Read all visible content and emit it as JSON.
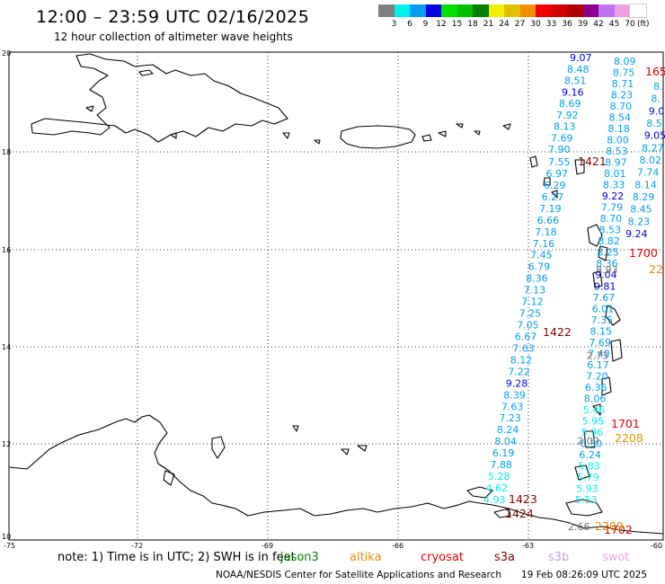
{
  "header": {
    "title": "12:00 – 23:59 UTC 02/16/2025",
    "subtitle": "12 hour collection of altimeter wave heights"
  },
  "legend": {
    "colors": [
      "#808080",
      "#00f0f0",
      "#00a0f0",
      "#0000e0",
      "#00e000",
      "#00c000",
      "#008000",
      "#f0f000",
      "#e0c000",
      "#f09000",
      "#f00000",
      "#d00000",
      "#b00000",
      "#900090",
      "#c070f0",
      "#f0a0e0",
      "#ffffff"
    ],
    "labels": [
      "3",
      "6",
      "9",
      "12",
      "15",
      "18",
      "21",
      "24",
      "27",
      "30",
      "33",
      "36",
      "39",
      "42",
      "45",
      "70"
    ],
    "unit": "(ft)"
  },
  "axes": {
    "lon_ticks": [
      "-75",
      "-72",
      "-69",
      "-66",
      "-63",
      "-60"
    ],
    "lat_ticks": [
      "20",
      "18",
      "16",
      "14",
      "12",
      "10"
    ]
  },
  "passes": [
    {
      "label": "1421",
      "color": "#800000"
    },
    {
      "label": "1422",
      "color": "#800000"
    },
    {
      "label": "1423",
      "color": "#800000"
    },
    {
      "label": "1424",
      "color": "#800000"
    },
    {
      "label": "1700",
      "color": "#e00000"
    },
    {
      "label": "1701",
      "color": "#e00000"
    },
    {
      "label": "1702",
      "color": "#e00000"
    },
    {
      "label": "165",
      "color": "#e00000"
    },
    {
      "label": "2208",
      "color": "#e09000"
    },
    {
      "label": "2209",
      "color": "#e09000"
    },
    {
      "label": "22",
      "color": "#e09000"
    }
  ],
  "tracks": {
    "inner": [
      "7.55",
      "6.97",
      "6.29",
      "6.27",
      "7.19",
      "6.66",
      "7.18",
      "7.16",
      "7.45",
      "6.79",
      "8.36",
      "7.13",
      "7.12",
      "7.25",
      "7.05",
      "6.67",
      "7.63",
      "8.12",
      "7.22",
      "9.28",
      "8.39",
      "7.63",
      "7.23",
      "8.24",
      "8.04",
      "6.19",
      "7.88",
      "5.28",
      "4.62",
      "4.93"
    ],
    "middle": [
      "9.07",
      "8.48",
      "8.51",
      "9.16",
      "8.69",
      "7.92",
      "8.13",
      "7.69",
      "7.90"
    ],
    "outer": [
      "8.09",
      "8.75",
      "8.71",
      "8.23",
      "8.70",
      "8.54",
      "8.18",
      "8.00",
      "8.53",
      "8.97",
      "8.01",
      "8.33",
      "9.22",
      "7.79",
      "8.70",
      "8.53",
      "8.82",
      "8.25",
      "8.36",
      "9.04",
      "9.81",
      "7.67",
      "6.01",
      "7.35",
      "8.15",
      "7.69",
      "7.40",
      "6.17",
      "7.20",
      "6.36",
      "8.06",
      "5.46",
      "5.95",
      "5.96",
      "6.30",
      "6.24",
      "5.83",
      "5.79",
      "5.93",
      "5.53"
    ],
    "east": [
      "8.",
      "8.",
      "9.0",
      "8.5",
      "9.05",
      "8.27",
      "8.02",
      "7.74",
      "8.14",
      "8.29",
      "8.45",
      "8.23",
      "9.24"
    ],
    "gray": [
      "8.93",
      "2.73",
      "2.09",
      "2.66"
    ]
  },
  "footer": {
    "note": "note:  1) Time is in UTC;  2) SWH is in feet",
    "satellites": [
      {
        "name": "jason3",
        "color": "#008000"
      },
      {
        "name": "altika",
        "color": "#e09000"
      },
      {
        "name": "cryosat",
        "color": "#e00000"
      },
      {
        "name": "s3a",
        "color": "#800000"
      },
      {
        "name": "s3b",
        "color": "#c0a0f0"
      },
      {
        "name": "swot",
        "color": "#f0a0e0"
      }
    ],
    "credit": "NOAA/NESDIS Center for Satellite Applications and Research",
    "date": "19 Feb 08:26:09 UTC 2025"
  }
}
